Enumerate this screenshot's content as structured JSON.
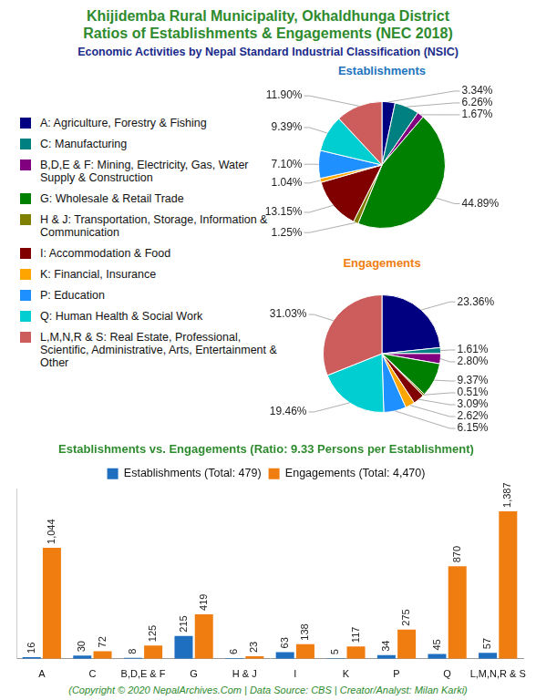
{
  "header": {
    "title": [
      "Khijidemba Rural Municipality, Okhaldhunga District",
      "Ratios of Establishments & Engagements (NEC 2018)"
    ],
    "subtitle": "Economic Activities by Nepal Standard Industrial Classification (NSIC)"
  },
  "chart_data": [
    {
      "type": "pie",
      "title": "Establishments",
      "categories": [
        "A: Agriculture, Forestry & Fishing",
        "C: Manufacturing",
        "B,D,E & F: Mining, Electricity, Gas, Water Supply & Construction",
        "G: Wholesale & Retail Trade",
        "H & J: Transportation, Storage, Information & Communication",
        "I: Accommodation & Food",
        "K: Financial, Insurance",
        "P: Education",
        "Q: Human Health & Social Work",
        "L,M,N,R & S: Real Estate, Professional, Scientific, Administrative, Arts, Entertainment & Other"
      ],
      "values": [
        3.34,
        6.26,
        1.67,
        44.89,
        1.25,
        13.15,
        1.04,
        7.1,
        9.39,
        11.9
      ],
      "value_labels": [
        "3.34%",
        "6.26%",
        "1.67%",
        "44.89%",
        "1.25%",
        "13.15%",
        "1.04%",
        "7.10%",
        "9.39%",
        "11.90%"
      ],
      "colors": [
        "#000080",
        "#008080",
        "#800080",
        "#008000",
        "#808000",
        "#800000",
        "#ffa500",
        "#1e90ff",
        "#00ced1",
        "#cd5c5c"
      ],
      "data_labels": true,
      "legend": "left"
    },
    {
      "type": "pie",
      "title": "Engagements",
      "categories": [
        "A: Agriculture, Forestry & Fishing",
        "C: Manufacturing",
        "B,D,E & F: Mining, Electricity, Gas, Water Supply & Construction",
        "G: Wholesale & Retail Trade",
        "H & J: Transportation, Storage, Information & Communication",
        "I: Accommodation & Food",
        "K: Financial, Insurance",
        "P: Education",
        "Q: Human Health & Social Work",
        "L,M,N,R & S: Real Estate, Professional, Scientific, Administrative, Arts, Entertainment & Other"
      ],
      "values": [
        23.36,
        1.61,
        2.8,
        9.37,
        0.51,
        3.09,
        2.62,
        6.15,
        19.46,
        31.03
      ],
      "value_labels": [
        "23.36%",
        "1.61%",
        "2.80%",
        "9.37%",
        "0.51%",
        "3.09%",
        "2.62%",
        "6.15%",
        "19.46%",
        "31.03%"
      ],
      "colors": [
        "#000080",
        "#008080",
        "#800080",
        "#008000",
        "#808000",
        "#800000",
        "#ffa500",
        "#1e90ff",
        "#00ced1",
        "#cd5c5c"
      ],
      "data_labels": true
    },
    {
      "type": "bar",
      "title": "Establishments vs. Engagements (Ratio: 9.33 Persons per Establishment)",
      "categories": [
        "A",
        "C",
        "B,D,E & F",
        "G",
        "H & J",
        "I",
        "K",
        "P",
        "Q",
        "L,M,N,R & S"
      ],
      "series": [
        {
          "name": "Establishments (Total: 479)",
          "color": "#1f6fc0",
          "values": [
            16,
            30,
            8,
            215,
            6,
            63,
            5,
            34,
            45,
            57
          ]
        },
        {
          "name": "Engagements (Total: 4,470)",
          "color": "#f07d10",
          "values": [
            1044,
            72,
            125,
            419,
            23,
            138,
            117,
            275,
            870,
            1387
          ],
          "value_labels": [
            "1,044",
            "72",
            "125",
            "419",
            "23",
            "138",
            "117",
            "275",
            "870",
            "1,387"
          ]
        }
      ],
      "ylim": [
        0,
        1600
      ],
      "grid": false,
      "data_labels": true,
      "tick_labels": "x",
      "legend": "top"
    }
  ],
  "footer": "(Copyright © 2020 NepalArchives.Com | Data Source: CBS | Creator/Analyst: Milan Karki)"
}
